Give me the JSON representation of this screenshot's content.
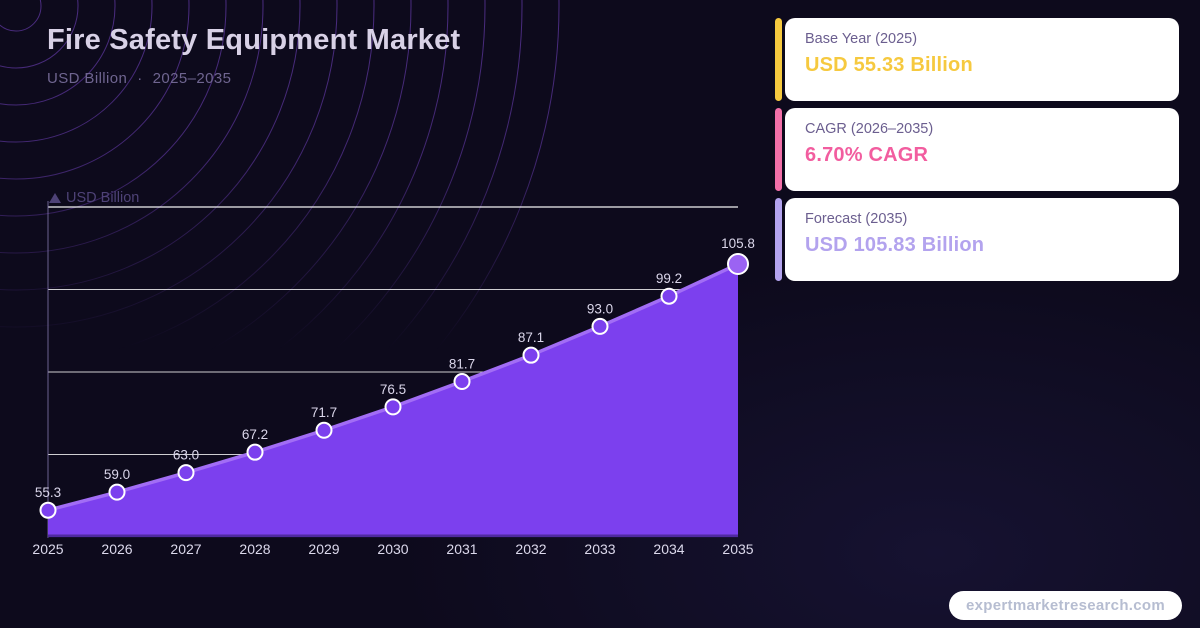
{
  "header": {
    "title": "Fire Safety Equipment Market",
    "subtitle_unit": "USD Billion",
    "subtitle_sep": "·",
    "subtitle_range": "2025–2035"
  },
  "cards": [
    {
      "label": "Base Year (2025)",
      "value": "USD 55.33 Billion",
      "accent": "#f6c93f",
      "value_color": "#f6c93f"
    },
    {
      "label": "CAGR (2026–2035)",
      "value": "6.70% CAGR",
      "accent": "#f26fa8",
      "value_color": "#f25d9f"
    },
    {
      "label": "Forecast (2035)",
      "value": "USD 105.83 Billion",
      "accent": "#b3a3ee",
      "value_color": "#b3a3ee"
    }
  ],
  "chart_data": {
    "type": "area",
    "title": "Fire Safety Equipment Market",
    "xlabel": "",
    "ylabel": "USD Billion",
    "x": [
      2025,
      2026,
      2027,
      2028,
      2029,
      2030,
      2031,
      2032,
      2033,
      2034,
      2035
    ],
    "values": [
      55.3,
      59.0,
      63.0,
      67.2,
      71.7,
      76.5,
      81.7,
      87.1,
      93.0,
      99.2,
      105.8
    ],
    "point_labels": [
      "55.3",
      "59.0",
      "63.0",
      "67.2",
      "71.7",
      "76.5",
      "81.7",
      "87.1",
      "93.0",
      "99.2",
      "105.8"
    ],
    "ylim": [
      49.8,
      117.5
    ],
    "grid": true,
    "legend_position": "none",
    "colors": {
      "area_fill": "#7c40ee",
      "trend_line": "#a26df5",
      "marker_fill": "#7c40ee",
      "marker_stroke": "#ffffff",
      "last_marker_fill": "#9b63f3",
      "gridline": "#ffffff",
      "axis_line": "#8274ab",
      "axis_title": "#4e4277",
      "value_label": "#dad6ea",
      "tick_label": "#dcd9ec"
    }
  },
  "watermark": "expertmarketresearch.com"
}
